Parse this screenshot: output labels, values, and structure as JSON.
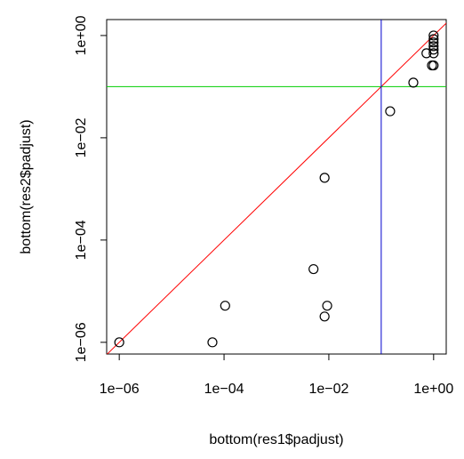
{
  "chart_data": {
    "type": "scatter",
    "log_x": true,
    "log_y": true,
    "x_label": "bottom(res1$padjust)",
    "y_label": "bottom(res2$padjust)",
    "xlim": [
      5.75e-07,
      1.74
    ],
    "ylim": [
      5.9e-07,
      2.05
    ],
    "xticks": [
      {
        "value": 1e-06,
        "label": "1e−06"
      },
      {
        "value": 0.0001,
        "label": "1e−04"
      },
      {
        "value": 0.01,
        "label": "1e−02"
      },
      {
        "value": 1,
        "label": "1e+00"
      }
    ],
    "yticks": [
      {
        "value": 1e-06,
        "label": "1e−06"
      },
      {
        "value": 0.0001,
        "label": "1e−04"
      },
      {
        "value": 0.01,
        "label": "1e−02"
      },
      {
        "value": 1,
        "label": "1e+00"
      }
    ],
    "series": [
      {
        "color": "#000000",
        "x": [
          1e-06,
          6e-05,
          0.000105,
          0.0051,
          0.0083,
          0.0083,
          0.0093,
          0.148,
          0.41,
          0.73,
          0.93,
          1,
          1,
          1,
          1,
          1,
          1,
          1
        ],
        "values": [
          1e-06,
          1e-06,
          5.2e-06,
          2.7e-05,
          0.00165,
          3.2e-06,
          5.2e-06,
          0.033,
          0.12,
          0.45,
          0.26,
          0.26,
          1,
          0.85,
          0.73,
          0.62,
          0.53,
          0.45
        ]
      }
    ],
    "hline": {
      "value": 0.1,
      "color": "#00cd00"
    },
    "vline": {
      "value": 0.1,
      "color": "#0000cd"
    },
    "diagonal": {
      "color": "#ff0000"
    }
  }
}
